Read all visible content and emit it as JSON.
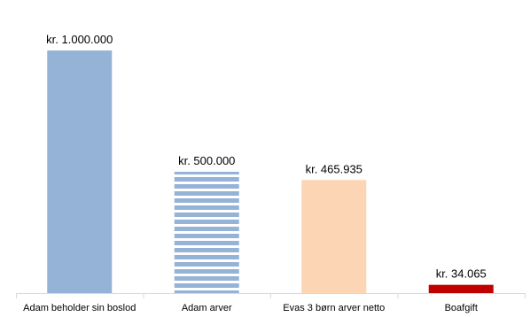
{
  "chart_data": {
    "type": "bar",
    "title": "",
    "xlabel": "",
    "ylabel": "",
    "ylim": [
      0,
      1000000
    ],
    "grid": false,
    "legend": "none",
    "categories": [
      "Adam beholder sin boslod",
      "Adam arver",
      "Evas 3 børn arver netto",
      "Boafgift"
    ],
    "values": [
      1000000,
      500000,
      465935,
      34065
    ],
    "data_labels": [
      "kr. 1.000.000",
      "kr. 500.000",
      "kr. 465.935",
      "kr. 34.065"
    ],
    "bar_styles": [
      {
        "fill": "#95b3d7",
        "pattern": "solid"
      },
      {
        "fill": "#95b3d7",
        "pattern": "horizontal-stripes"
      },
      {
        "fill": "#fcd5b4",
        "pattern": "solid"
      },
      {
        "fill": "#c00000",
        "pattern": "solid"
      }
    ]
  }
}
